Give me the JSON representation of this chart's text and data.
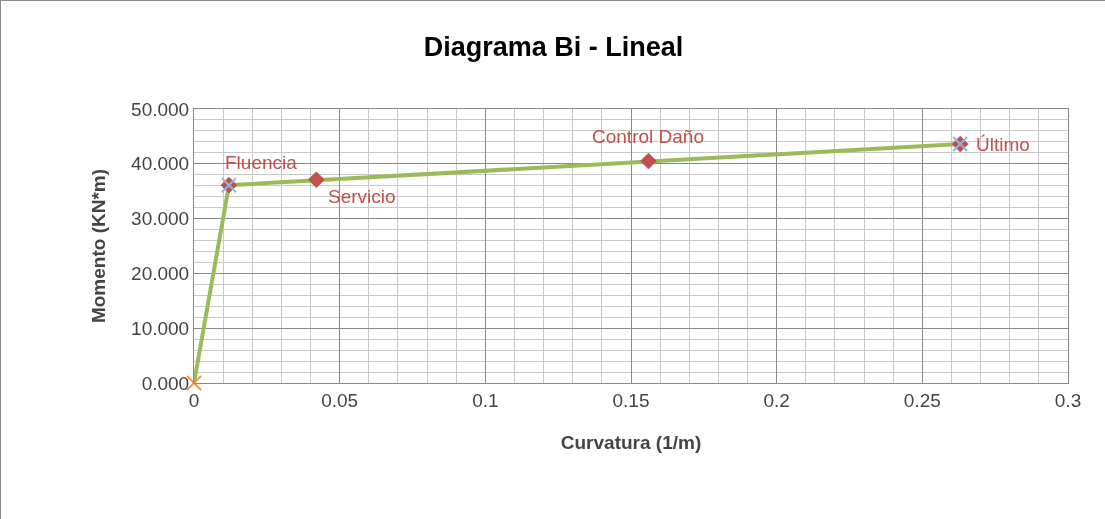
{
  "chart_data": {
    "type": "line",
    "title": "Diagrama Bi - Lineal",
    "xlabel": "Curvatura (1/m)",
    "ylabel": "Momento (KN*m)",
    "series": [
      {
        "color": "#9bbb59",
        "x": [
          0,
          0.012,
          0.263
        ],
        "values": [
          0,
          36.1,
          43.6
        ],
        "marker": "none"
      },
      {
        "type": "scatter",
        "color": "#c0504d",
        "x": [
          0.012,
          0.042,
          0.156,
          0.263
        ],
        "values": [
          36.1,
          37.1,
          40.5,
          43.6
        ],
        "marker": "diamond"
      },
      {
        "type": "scatter",
        "color": "#8eb4e3",
        "x": [
          0.012,
          0.263
        ],
        "values": [
          36.1,
          43.6
        ],
        "marker": "cross"
      },
      {
        "type": "scatter",
        "color": "#f79646",
        "x": [
          0
        ],
        "values": [
          0
        ],
        "marker": "cross"
      }
    ],
    "annotations": [
      {
        "text": "Fluencia",
        "x": 0.012,
        "y": 36.1
      },
      {
        "text": "Servicio",
        "x": 0.042,
        "y": 37.1
      },
      {
        "text": "Control Daño",
        "x": 0.156,
        "y": 40.5
      },
      {
        "text": "Último",
        "x": 0.263,
        "y": 43.6
      }
    ],
    "xlim": [
      0,
      0.3
    ],
    "xticks": [
      0,
      0.05,
      0.1,
      0.15,
      0.2,
      0.25,
      0.3
    ],
    "ylim": [
      0,
      50
    ],
    "yticks": [
      {
        "value": 0,
        "label": "0.000"
      },
      {
        "value": 10,
        "label": "10.000"
      },
      {
        "value": 20,
        "label": "20.000"
      },
      {
        "value": 30,
        "label": "30.000"
      },
      {
        "value": 40,
        "label": "40.000"
      },
      {
        "value": 50,
        "label": "50.000"
      }
    ],
    "grid": true
  }
}
